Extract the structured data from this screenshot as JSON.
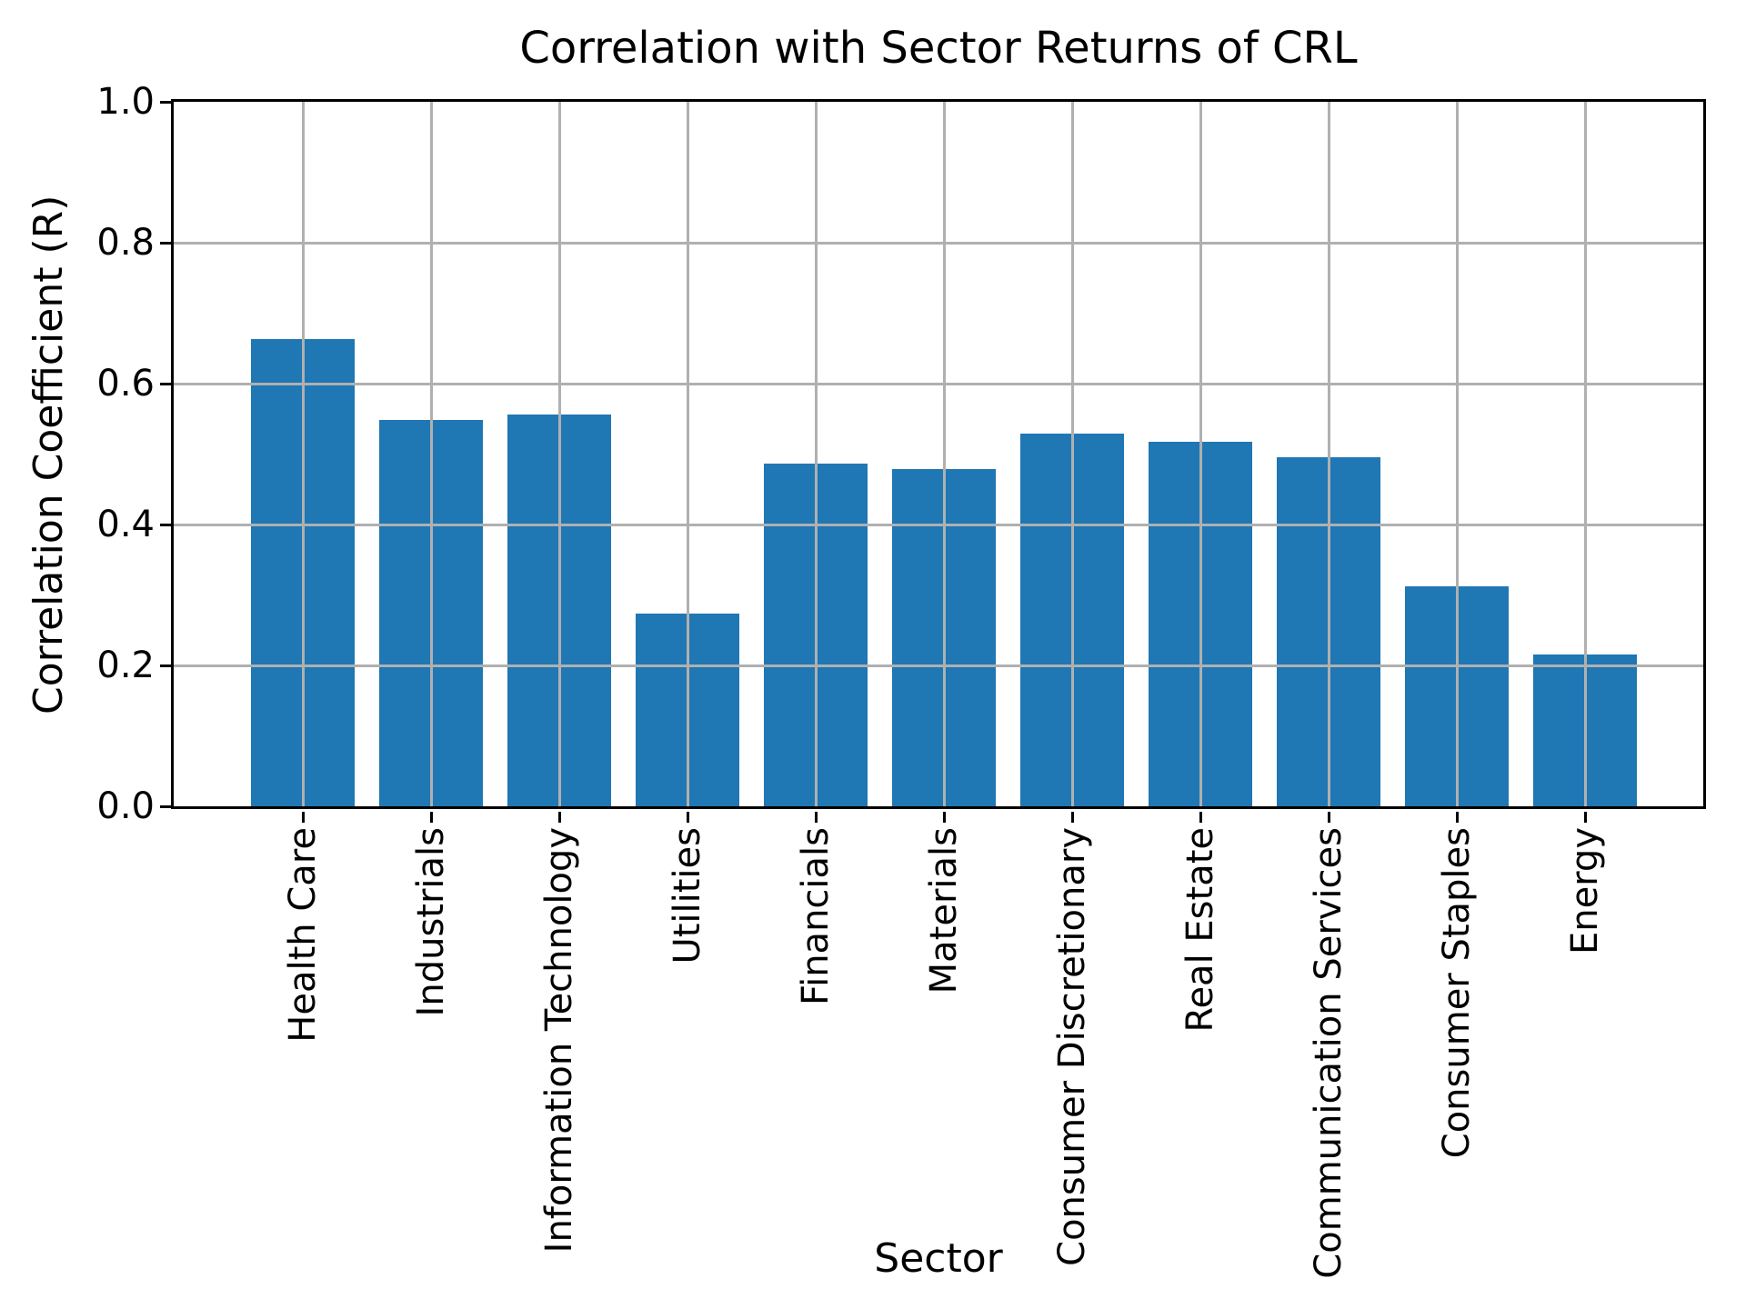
{
  "figure": {
    "background": "#ffffff",
    "spine_color": "#000000",
    "text_color": "#000000"
  },
  "chart_data": {
    "type": "bar",
    "title": "Correlation with Sector Returns of CRL",
    "xlabel": "Sector",
    "ylabel": "Correlation Coefficient (R)",
    "categories": [
      "Health Care",
      "Industrials",
      "Information Technology",
      "Utilities",
      "Financials",
      "Materials",
      "Consumer Discretionary",
      "Real Estate",
      "Communication Services",
      "Consumer Staples",
      "Energy"
    ],
    "values": [
      0.663,
      0.549,
      0.556,
      0.273,
      0.487,
      0.479,
      0.529,
      0.517,
      0.495,
      0.312,
      0.216
    ],
    "ylim": [
      0.0,
      1.0
    ],
    "yticks": [
      0.0,
      0.2,
      0.4,
      0.6,
      0.8,
      1.0
    ],
    "ytick_labels": [
      "0.0",
      "0.2",
      "0.4",
      "0.6",
      "0.8",
      "1.0"
    ],
    "xtick_rotation_deg": 90,
    "grid": true,
    "grid_color": "#b0b0b0",
    "bar_color": "#1f77b4",
    "legend": false
  }
}
